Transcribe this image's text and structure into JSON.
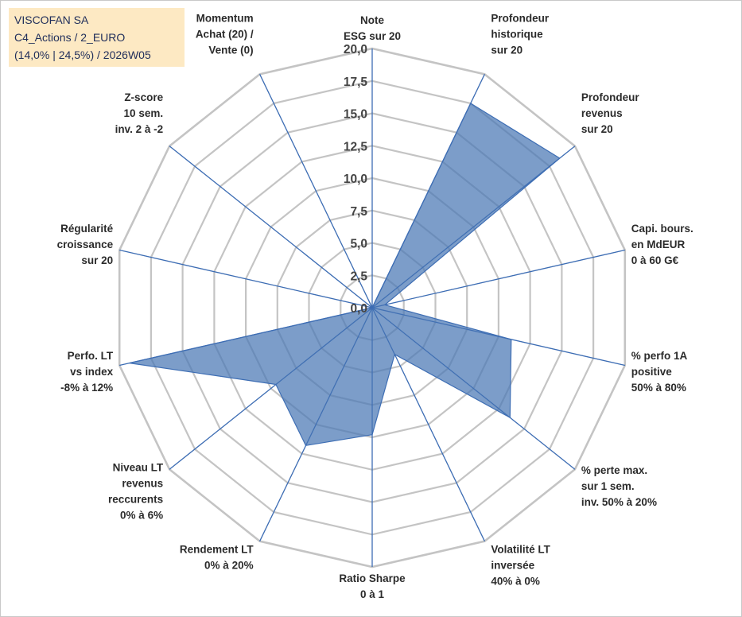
{
  "title_box": {
    "line1": "VISCOFAN SA",
    "line2": "C4_Actions / 2_EURO",
    "line3": "(14,0% | 24,5%) / 2026W05"
  },
  "colors": {
    "grid": "#c4c4c4",
    "spoke": "#3e6eb4",
    "fill": "#4a77b4",
    "fill_edge": "#3e6eb4",
    "title_bg": "#fde9c3"
  },
  "chart_data": {
    "type": "radar",
    "title": "",
    "rmin": 0,
    "rmax": 20,
    "tick_step": 2.5,
    "ticks": [
      "0,0",
      "2,5",
      "5,0",
      "7,5",
      "10,0",
      "12,5",
      "15,0",
      "17,5",
      "20,0"
    ],
    "axes": [
      {
        "label": [
          "Note",
          "ESG sur 20"
        ],
        "value": 0
      },
      {
        "label": [
          "Profondeur",
          "historique",
          "sur 20"
        ],
        "value": 17.5
      },
      {
        "label": [
          "Profondeur",
          "revenus",
          "sur 20"
        ],
        "value": 18.5
      },
      {
        "label": [
          "Capi. bours.",
          "en MdEUR",
          "0 à 60 G€"
        ],
        "value": 1
      },
      {
        "label": [
          "% perfo 1A",
          "positive",
          "50% à 80%"
        ],
        "value": 11
      },
      {
        "label": [
          "% perte max.",
          "sur 1 sem.",
          "inv. 50% à 20%"
        ],
        "value": 13.6
      },
      {
        "label": [
          "Volatilité LT",
          "inversée",
          "40% à 0%"
        ],
        "value": 4
      },
      {
        "label": [
          "Ratio Sharpe",
          "0 à 1"
        ],
        "value": 9.8
      },
      {
        "label": [
          "Rendement LT",
          "0% à 20%"
        ],
        "value": 11.8
      },
      {
        "label": [
          "Niveau LT",
          "revenus",
          "reccurents",
          "0% à 6%"
        ],
        "value": 9.5
      },
      {
        "label": [
          "Perfo. LT",
          "vs index",
          "-8% à 12%"
        ],
        "value": 19.2
      },
      {
        "label": [
          "Régularité",
          "croissance",
          "sur 20"
        ],
        "value": 0
      },
      {
        "label": [
          "Z-score",
          "10 sem.",
          "inv. 2 à -2"
        ],
        "value": 0
      },
      {
        "label": [
          "Momentum",
          "Achat (20) /",
          "Vente (0)"
        ],
        "value": 0.5
      }
    ]
  }
}
